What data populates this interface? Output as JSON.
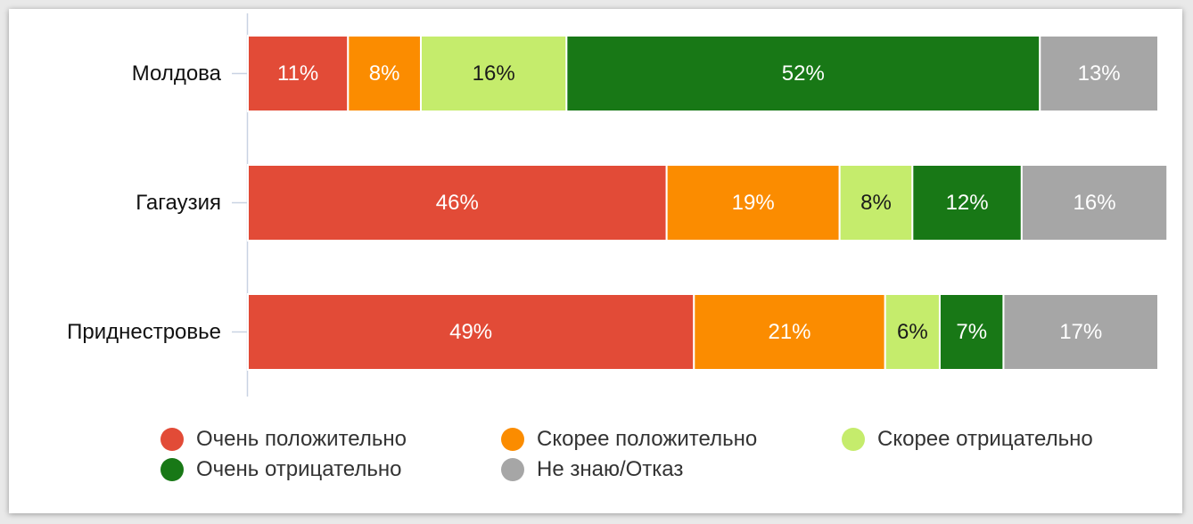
{
  "chart_data": {
    "type": "bar",
    "orientation": "horizontal",
    "stacked": true,
    "categories": [
      "Молдова",
      "Гагаузия",
      "Приднестровье"
    ],
    "series": [
      {
        "name": "Очень положительно",
        "color": "#e24b37",
        "values": [
          11,
          46,
          49
        ],
        "labels": [
          "11%",
          "46%",
          "49%"
        ]
      },
      {
        "name": "Скорее положительно",
        "color": "#fb8c00",
        "values": [
          8,
          19,
          21
        ],
        "labels": [
          "8%",
          "19%",
          "21%"
        ]
      },
      {
        "name": "Скорее отрицательно",
        "color": "#c5ec6c",
        "values": [
          16,
          8,
          6
        ],
        "labels": [
          "16%",
          "8%",
          "6%"
        ]
      },
      {
        "name": "Очень отрицательно",
        "color": "#187816",
        "values": [
          52,
          12,
          7
        ],
        "labels": [
          "52%",
          "12%",
          "7%"
        ]
      },
      {
        "name": "Не знаю/Отказ",
        "color": "#a6a6a6",
        "values": [
          13,
          16,
          17
        ],
        "labels": [
          "13%",
          "16%",
          "17%"
        ]
      }
    ],
    "label_colors": [
      "#ffffff",
      "#ffffff",
      "#1a1a1a",
      "#ffffff",
      "#ffffff"
    ],
    "xlim": [
      0,
      100
    ],
    "grid": false,
    "legend_position": "bottom"
  }
}
